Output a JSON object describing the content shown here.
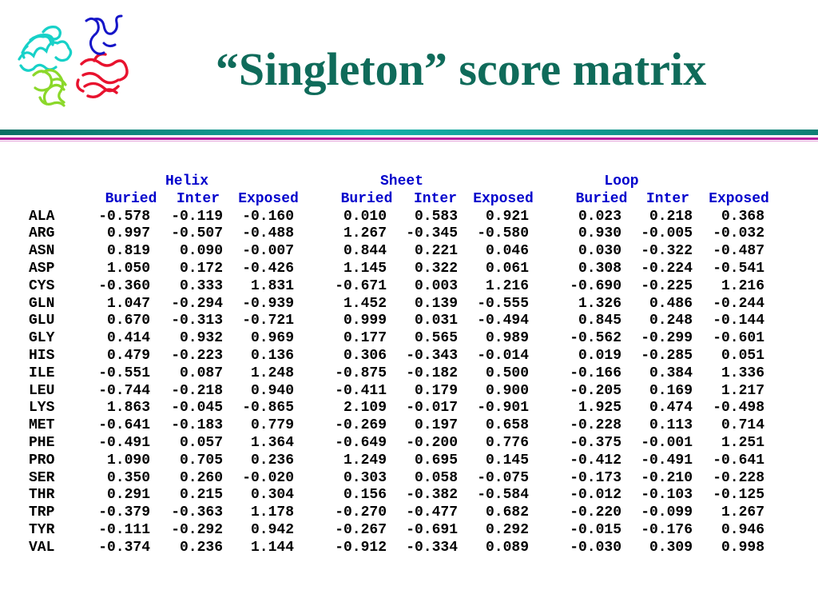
{
  "title": "“Singleton” score matrix",
  "logo": {
    "icon": "protein-structure-icon",
    "colors": [
      "#17d1c8",
      "#8bd82a",
      "#e8122e",
      "#1515c8"
    ]
  },
  "matrix": {
    "groups": [
      {
        "name": "Helix",
        "columns": [
          "Buried",
          "Inter",
          "Exposed"
        ]
      },
      {
        "name": "Sheet",
        "columns": [
          "Buried",
          "Inter",
          "Exposed"
        ]
      },
      {
        "name": "Loop",
        "columns": [
          "Buried",
          "Inter",
          "Exposed"
        ]
      }
    ],
    "rows": [
      {
        "aa": "ALA",
        "values": [
          "-0.578",
          "-0.119",
          "-0.160",
          "0.010",
          "0.583",
          "0.921",
          "0.023",
          "0.218",
          "0.368"
        ]
      },
      {
        "aa": "ARG",
        "values": [
          "0.997",
          "-0.507",
          "-0.488",
          "1.267",
          "-0.345",
          "-0.580",
          "0.930",
          "-0.005",
          "-0.032"
        ]
      },
      {
        "aa": "ASN",
        "values": [
          "0.819",
          "0.090",
          "-0.007",
          "0.844",
          "0.221",
          "0.046",
          "0.030",
          "-0.322",
          "-0.487"
        ]
      },
      {
        "aa": "ASP",
        "values": [
          "1.050",
          "0.172",
          "-0.426",
          "1.145",
          "0.322",
          "0.061",
          "0.308",
          "-0.224",
          "-0.541"
        ]
      },
      {
        "aa": "CYS",
        "values": [
          "-0.360",
          "0.333",
          "1.831",
          "-0.671",
          "0.003",
          "1.216",
          "-0.690",
          "-0.225",
          "1.216"
        ]
      },
      {
        "aa": "GLN",
        "values": [
          "1.047",
          "-0.294",
          "-0.939",
          "1.452",
          "0.139",
          "-0.555",
          "1.326",
          "0.486",
          "-0.244"
        ]
      },
      {
        "aa": "GLU",
        "values": [
          "0.670",
          "-0.313",
          "-0.721",
          "0.999",
          "0.031",
          "-0.494",
          "0.845",
          "0.248",
          "-0.144"
        ]
      },
      {
        "aa": "GLY",
        "values": [
          "0.414",
          "0.932",
          "0.969",
          "0.177",
          "0.565",
          "0.989",
          "-0.562",
          "-0.299",
          "-0.601"
        ]
      },
      {
        "aa": "HIS",
        "values": [
          "0.479",
          "-0.223",
          "0.136",
          "0.306",
          "-0.343",
          "-0.014",
          "0.019",
          "-0.285",
          "0.051"
        ]
      },
      {
        "aa": "ILE",
        "values": [
          "-0.551",
          "0.087",
          "1.248",
          "-0.875",
          "-0.182",
          "0.500",
          "-0.166",
          "0.384",
          "1.336"
        ]
      },
      {
        "aa": "LEU",
        "values": [
          "-0.744",
          "-0.218",
          "0.940",
          "-0.411",
          "0.179",
          "0.900",
          "-0.205",
          "0.169",
          "1.217"
        ]
      },
      {
        "aa": "LYS",
        "values": [
          "1.863",
          "-0.045",
          "-0.865",
          "2.109",
          "-0.017",
          "-0.901",
          "1.925",
          "0.474",
          "-0.498"
        ]
      },
      {
        "aa": "MET",
        "values": [
          "-0.641",
          "-0.183",
          "0.779",
          "-0.269",
          "0.197",
          "0.658",
          "-0.228",
          "0.113",
          "0.714"
        ]
      },
      {
        "aa": "PHE",
        "values": [
          "-0.491",
          "0.057",
          "1.364",
          "-0.649",
          "-0.200",
          "0.776",
          "-0.375",
          "-0.001",
          "1.251"
        ]
      },
      {
        "aa": "PRO",
        "values": [
          "1.090",
          "0.705",
          "0.236",
          "1.249",
          "0.695",
          "0.145",
          "-0.412",
          "-0.491",
          "-0.641"
        ]
      },
      {
        "aa": "SER",
        "values": [
          "0.350",
          "0.260",
          "-0.020",
          "0.303",
          "0.058",
          "-0.075",
          "-0.173",
          "-0.210",
          "-0.228"
        ]
      },
      {
        "aa": "THR",
        "values": [
          "0.291",
          "0.215",
          "0.304",
          "0.156",
          "-0.382",
          "-0.584",
          "-0.012",
          "-0.103",
          "-0.125"
        ]
      },
      {
        "aa": "TRP",
        "values": [
          "-0.379",
          "-0.363",
          "1.178",
          "-0.270",
          "-0.477",
          "0.682",
          "-0.220",
          "-0.099",
          "1.267"
        ]
      },
      {
        "aa": "TYR",
        "values": [
          "-0.111",
          "-0.292",
          "0.942",
          "-0.267",
          "-0.691",
          "0.292",
          "-0.015",
          "-0.176",
          "0.946"
        ]
      },
      {
        "aa": "VAL",
        "values": [
          "-0.374",
          "0.236",
          "1.144",
          "-0.912",
          "-0.334",
          "0.089",
          "-0.030",
          "0.309",
          "0.998"
        ]
      }
    ]
  }
}
